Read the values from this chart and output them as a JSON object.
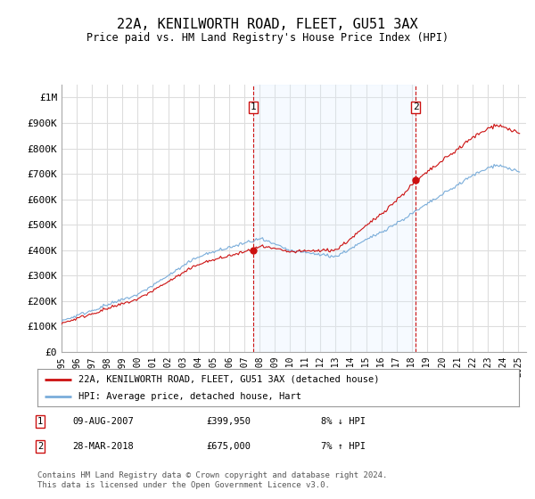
{
  "title": "22A, KENILWORTH ROAD, FLEET, GU51 3AX",
  "subtitle": "Price paid vs. HM Land Registry's House Price Index (HPI)",
  "ylabel_ticks": [
    "£0",
    "£100K",
    "£200K",
    "£300K",
    "£400K",
    "£500K",
    "£600K",
    "£700K",
    "£800K",
    "£900K",
    "£1M"
  ],
  "ytick_values": [
    0,
    100000,
    200000,
    300000,
    400000,
    500000,
    600000,
    700000,
    800000,
    900000,
    1000000
  ],
  "ylim": [
    0,
    1050000
  ],
  "xlim_start": 1995.0,
  "xlim_end": 2025.5,
  "legend_line1": "22A, KENILWORTH ROAD, FLEET, GU51 3AX (detached house)",
  "legend_line2": "HPI: Average price, detached house, Hart",
  "sale1_date": "09-AUG-2007",
  "sale1_price": "£399,950",
  "sale1_hpi": "8% ↓ HPI",
  "sale1_x": 2007.6,
  "sale1_y": 399950,
  "sale2_date": "28-MAR-2018",
  "sale2_price": "£675,000",
  "sale2_hpi": "7% ↑ HPI",
  "sale2_x": 2018.25,
  "sale2_y": 675000,
  "hpi_color": "#7aadda",
  "price_color": "#cc1111",
  "vline_color": "#cc1111",
  "marker_color": "#cc1111",
  "fill_color": "#ddeeff",
  "grid_color": "#dddddd",
  "background_color": "#ffffff",
  "footnote": "Contains HM Land Registry data © Crown copyright and database right 2024.\nThis data is licensed under the Open Government Licence v3.0."
}
